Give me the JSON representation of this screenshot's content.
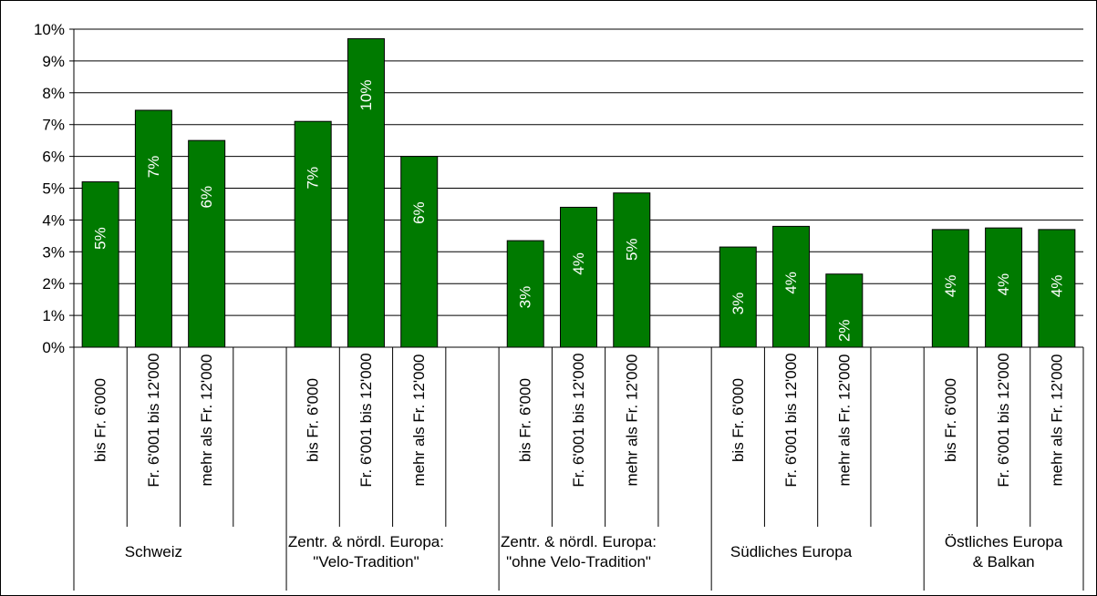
{
  "chart_data": {
    "type": "bar",
    "ylim": [
      0,
      10
    ],
    "y_ticks": [
      "0%",
      "1%",
      "2%",
      "3%",
      "4%",
      "5%",
      "6%",
      "7%",
      "8%",
      "9%",
      "10%"
    ],
    "grid": true,
    "bar_color": "#007A00",
    "bar_label_color": "#FFFFFF",
    "groups": [
      {
        "label_lines": [
          "Schweiz"
        ],
        "categories": [
          "bis Fr. 6'000",
          "Fr. 6'001 bis 12'000",
          "mehr als Fr. 12'000"
        ],
        "values": [
          5.2,
          7.45,
          6.5
        ],
        "labels": [
          "5%",
          "7%",
          "6%"
        ]
      },
      {
        "label_lines": [
          "Zentr. & nördl. Europa:",
          "\"Velo-Tradition\""
        ],
        "categories": [
          "bis Fr. 6'000",
          "Fr. 6'001 bis 12'000",
          "mehr als Fr. 12'000"
        ],
        "values": [
          7.1,
          9.7,
          6.0
        ],
        "labels": [
          "7%",
          "10%",
          "6%"
        ]
      },
      {
        "label_lines": [
          "Zentr. & nördl. Europa:",
          "\"ohne Velo-Tradition\""
        ],
        "categories": [
          "bis Fr. 6'000",
          "Fr. 6'001 bis 12'000",
          "mehr als Fr. 12'000"
        ],
        "values": [
          3.35,
          4.4,
          4.85
        ],
        "labels": [
          "3%",
          "4%",
          "5%"
        ]
      },
      {
        "label_lines": [
          "Südliches Europa"
        ],
        "categories": [
          "bis Fr. 6'000",
          "Fr. 6'001 bis 12'000",
          "mehr als Fr. 12'000"
        ],
        "values": [
          3.15,
          3.8,
          2.3
        ],
        "labels": [
          "3%",
          "4%",
          "2%"
        ]
      },
      {
        "label_lines": [
          "Östliches Europa",
          "& Balkan"
        ],
        "categories": [
          "bis Fr. 6'000",
          "Fr. 6'001 bis 12'000",
          "mehr als Fr. 12'000"
        ],
        "values": [
          3.7,
          3.75,
          3.7
        ],
        "labels": [
          "4%",
          "4%",
          "4%"
        ]
      }
    ]
  }
}
